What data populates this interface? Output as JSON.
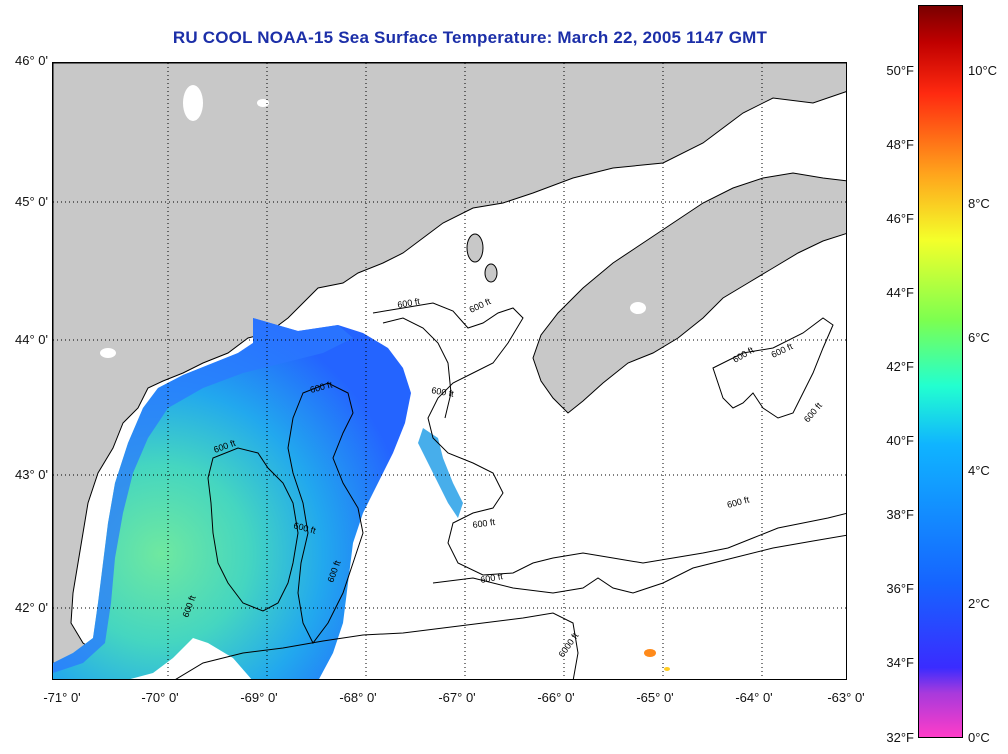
{
  "title": "RU COOL  NOAA-15  Sea Surface Temperature:  March 22, 2005 1147 GMT",
  "map": {
    "lat_labels": [
      "46° 0'",
      "45° 0'",
      "44° 0'",
      "43° 0'",
      "42° 0'"
    ],
    "lon_labels": [
      "-71° 0'",
      "-70° 0'",
      "-69° 0'",
      "-68° 0'",
      "-67° 0'",
      "-66° 0'",
      "-65° 0'",
      "-64° 0'",
      "-63° 0'"
    ],
    "contour_labels": [
      "600 ft",
      "6000 ft"
    ],
    "colors": {
      "land": "#c8c8c8",
      "sea_no_data": "#ffffff",
      "coastline": "#000000"
    }
  },
  "colorbar": {
    "f_labels": [
      "50°F",
      "48°F",
      "46°F",
      "44°F",
      "42°F",
      "40°F",
      "38°F",
      "36°F",
      "34°F",
      "32°F"
    ],
    "c_labels": [
      "10°C",
      "8°C",
      "6°C",
      "4°C",
      "2°C",
      "0°C"
    ]
  }
}
